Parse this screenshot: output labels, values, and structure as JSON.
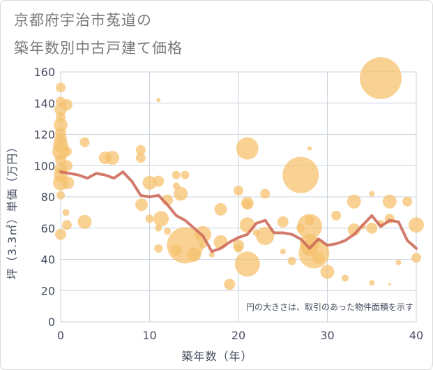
{
  "title_line1": "京都府宇治市菟道の",
  "title_line2": "築年数別中古戸建て価格",
  "note": "円の大きさは、取引のあった物件面積を示す",
  "chart_data": {
    "type": "scatter",
    "xlabel": "築年数（年）",
    "ylabel": "坪（3.3㎡）単価（万円）",
    "xlim": [
      0,
      40
    ],
    "ylim": [
      0,
      160
    ],
    "xticks": [
      0,
      10,
      20,
      30,
      40
    ],
    "yticks": [
      0,
      20,
      40,
      60,
      80,
      100,
      120,
      140,
      160
    ],
    "grid": true,
    "colors": {
      "bubble": "#f5c26f",
      "line": "#cd6b5b",
      "grid": "#c9d3df",
      "axis_text": "#444c5e"
    },
    "bubbles": [
      {
        "x": 0,
        "y": 150,
        "r": 7
      },
      {
        "x": 0,
        "y": 141,
        "r": 7
      },
      {
        "x": 0,
        "y": 136,
        "r": 9
      },
      {
        "x": 0,
        "y": 131,
        "r": 7
      },
      {
        "x": 0,
        "y": 126,
        "r": 10
      },
      {
        "x": 0,
        "y": 121,
        "r": 8
      },
      {
        "x": 0,
        "y": 117,
        "r": 9
      },
      {
        "x": 0,
        "y": 113,
        "r": 11
      },
      {
        "x": 0,
        "y": 109,
        "r": 12
      },
      {
        "x": 0,
        "y": 104,
        "r": 8
      },
      {
        "x": 0,
        "y": 98,
        "r": 9
      },
      {
        "x": 0,
        "y": 94,
        "r": 10
      },
      {
        "x": 0,
        "y": 89,
        "r": 11
      },
      {
        "x": 0,
        "y": 81,
        "r": 6
      },
      {
        "x": 0,
        "y": 56,
        "r": 8
      },
      {
        "x": 0.7,
        "y": 139,
        "r": 8
      },
      {
        "x": 0.7,
        "y": 109,
        "r": 7
      },
      {
        "x": 0.7,
        "y": 100,
        "r": 8
      },
      {
        "x": 0.8,
        "y": 89,
        "r": 9
      },
      {
        "x": 0.6,
        "y": 70,
        "r": 5
      },
      {
        "x": 0.7,
        "y": 62,
        "r": 7
      },
      {
        "x": 2.7,
        "y": 115,
        "r": 7
      },
      {
        "x": 2.7,
        "y": 64,
        "r": 10
      },
      {
        "x": 5,
        "y": 105,
        "r": 9
      },
      {
        "x": 5.8,
        "y": 105,
        "r": 10
      },
      {
        "x": 9,
        "y": 110,
        "r": 7
      },
      {
        "x": 9,
        "y": 105,
        "r": 7
      },
      {
        "x": 9.1,
        "y": 75,
        "r": 9
      },
      {
        "x": 10,
        "y": 89,
        "r": 10
      },
      {
        "x": 10,
        "y": 66,
        "r": 6
      },
      {
        "x": 11,
        "y": 142,
        "r": 3
      },
      {
        "x": 11,
        "y": 90,
        "r": 8
      },
      {
        "x": 11,
        "y": 60,
        "r": 5
      },
      {
        "x": 11.3,
        "y": 66,
        "r": 11
      },
      {
        "x": 11,
        "y": 47,
        "r": 6
      },
      {
        "x": 12,
        "y": 78,
        "r": 8
      },
      {
        "x": 12,
        "y": 58,
        "r": 5
      },
      {
        "x": 13,
        "y": 94,
        "r": 6
      },
      {
        "x": 13,
        "y": 87,
        "r": 5
      },
      {
        "x": 13.5,
        "y": 82,
        "r": 10
      },
      {
        "x": 14,
        "y": 94,
        "r": 6
      },
      {
        "x": 13,
        "y": 46,
        "r": 8
      },
      {
        "x": 14,
        "y": 49,
        "r": 26
      },
      {
        "x": 15,
        "y": 43,
        "r": 10
      },
      {
        "x": 16,
        "y": 56,
        "r": 12
      },
      {
        "x": 16,
        "y": 49,
        "r": 5
      },
      {
        "x": 17,
        "y": 43,
        "r": 4
      },
      {
        "x": 18,
        "y": 72,
        "r": 9
      },
      {
        "x": 18,
        "y": 51,
        "r": 10
      },
      {
        "x": 19,
        "y": 24,
        "r": 8
      },
      {
        "x": 20,
        "y": 84,
        "r": 7
      },
      {
        "x": 20,
        "y": 49,
        "r": 8
      },
      {
        "x": 20,
        "y": 47,
        "r": 6
      },
      {
        "x": 21,
        "y": 111,
        "r": 16
      },
      {
        "x": 21,
        "y": 76,
        "r": 9
      },
      {
        "x": 21,
        "y": 75,
        "r": 7
      },
      {
        "x": 21,
        "y": 62,
        "r": 11
      },
      {
        "x": 21,
        "y": 37,
        "r": 18
      },
      {
        "x": 22,
        "y": 57,
        "r": 5
      },
      {
        "x": 23,
        "y": 82,
        "r": 7
      },
      {
        "x": 23,
        "y": 55,
        "r": 13
      },
      {
        "x": 25,
        "y": 64,
        "r": 8
      },
      {
        "x": 25,
        "y": 45,
        "r": 4
      },
      {
        "x": 26,
        "y": 39,
        "r": 6
      },
      {
        "x": 27,
        "y": 94,
        "r": 26
      },
      {
        "x": 27,
        "y": 60,
        "r": 6
      },
      {
        "x": 28,
        "y": 111,
        "r": 3
      },
      {
        "x": 28,
        "y": 65,
        "r": 7
      },
      {
        "x": 28,
        "y": 61,
        "r": 18
      },
      {
        "x": 28,
        "y": 50,
        "r": 14
      },
      {
        "x": 28,
        "y": 47,
        "r": 11
      },
      {
        "x": 28.5,
        "y": 44,
        "r": 22
      },
      {
        "x": 29,
        "y": 41,
        "r": 9
      },
      {
        "x": 30,
        "y": 32,
        "r": 10
      },
      {
        "x": 31,
        "y": 68,
        "r": 7
      },
      {
        "x": 32,
        "y": 28,
        "r": 5
      },
      {
        "x": 33,
        "y": 77,
        "r": 10
      },
      {
        "x": 33,
        "y": 59,
        "r": 9
      },
      {
        "x": 34,
        "y": 61,
        "r": 4
      },
      {
        "x": 35,
        "y": 82,
        "r": 4
      },
      {
        "x": 35,
        "y": 60,
        "r": 8
      },
      {
        "x": 35,
        "y": 25,
        "r": 4
      },
      {
        "x": 36,
        "y": 156,
        "r": 30
      },
      {
        "x": 36,
        "y": 63,
        "r": 5
      },
      {
        "x": 37,
        "y": 77,
        "r": 10
      },
      {
        "x": 37,
        "y": 66,
        "r": 7
      },
      {
        "x": 37,
        "y": 24,
        "r": 2
      },
      {
        "x": 38,
        "y": 38,
        "r": 4
      },
      {
        "x": 39,
        "y": 77,
        "r": 7
      },
      {
        "x": 40,
        "y": 62,
        "r": 11
      },
      {
        "x": 40,
        "y": 41,
        "r": 7
      }
    ],
    "line": {
      "x": [
        0,
        1,
        2,
        3,
        4,
        5,
        6,
        7,
        8,
        9,
        10,
        11,
        12,
        13,
        14,
        15,
        16,
        17,
        18,
        19,
        20,
        21,
        22,
        23,
        24,
        25,
        26,
        27,
        28,
        29,
        30,
        31,
        32,
        33,
        34,
        35,
        36,
        37,
        38,
        39,
        40
      ],
      "y": [
        96,
        95,
        94,
        92,
        95,
        94,
        92,
        96,
        90,
        81,
        80,
        81,
        75,
        68,
        65,
        60,
        55,
        45,
        47,
        51,
        54,
        56,
        63,
        65,
        57,
        57,
        56,
        53,
        47,
        53,
        49,
        50,
        52,
        56,
        62,
        68,
        61,
        65,
        64,
        52,
        47
      ]
    }
  }
}
